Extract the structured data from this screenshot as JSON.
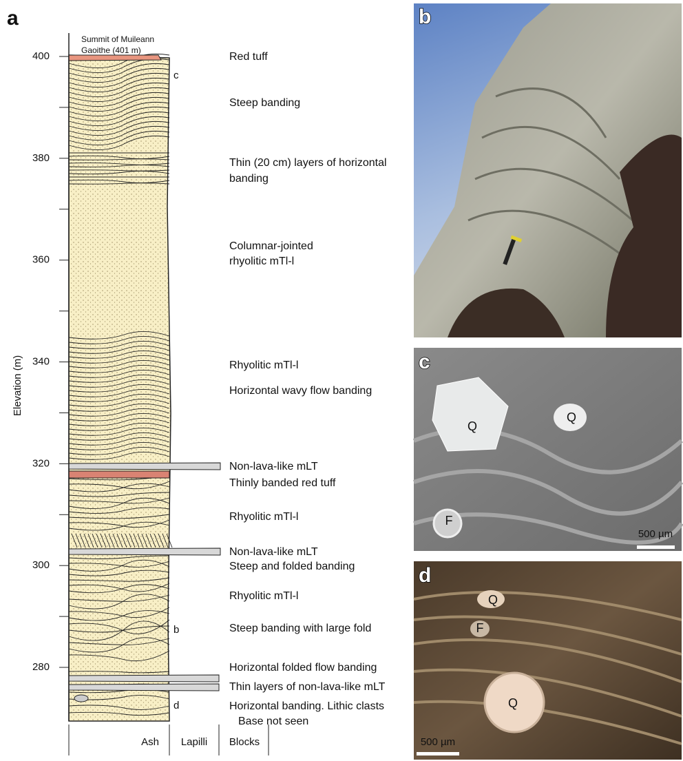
{
  "figure": {
    "panel_labels": [
      "a",
      "b",
      "c",
      "d"
    ],
    "log": {
      "axis_label": "Elevation (m)",
      "ticks": [
        280,
        300,
        320,
        340,
        360,
        380,
        400
      ],
      "minor_ticks": [
        290,
        310,
        330,
        350,
        370,
        390
      ],
      "summit": [
        "Summit of Muileann",
        "Gaoithe (401 m)"
      ],
      "sample_marks": [
        "c",
        "b",
        "d"
      ],
      "grain_sizes": [
        "Ash",
        "Lapilli",
        "Blocks"
      ],
      "descriptions": [
        "Red tuff",
        "Steep banding",
        "Thin (20 cm) layers of horizontal",
        "banding",
        "Columnar-jointed",
        "rhyolitic mTl-l",
        "Rhyolitic mTl-l",
        "Horizontal wavy flow banding",
        "Non-lava-like mLT",
        "Thinly banded red tuff",
        "Rhyolitic mTl-l",
        "Non-lava-like mLT",
        "Steep and folded banding",
        "Rhyolitic mTl-l",
        "Steep banding with large fold",
        "Horizontal folded flow banding",
        "Thin layers of non-lava-like mLT",
        "Horizontal banding. Lithic clasts",
        "Base not seen"
      ]
    },
    "photo_c": {
      "labels": [
        "Q",
        "Q",
        "F"
      ],
      "scale": "500 µm"
    },
    "photo_d": {
      "labels": [
        "Q",
        "F",
        "Q"
      ],
      "scale": "500 µm"
    }
  }
}
